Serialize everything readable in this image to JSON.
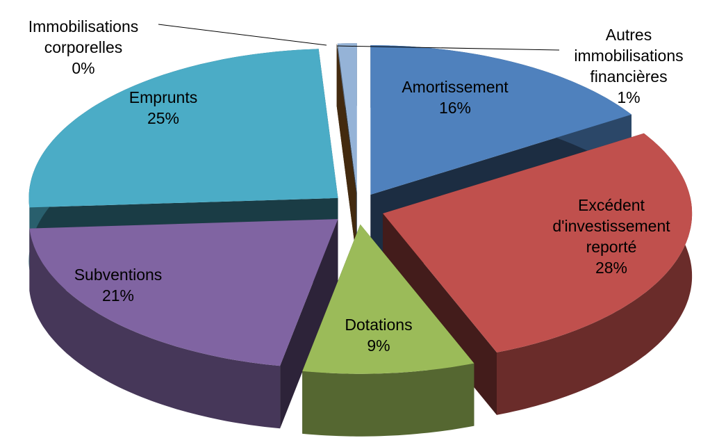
{
  "chart_data": {
    "type": "pie3d",
    "categories": [
      "Amortissement",
      "Excédent d'investissement reporté",
      "Dotations",
      "Subventions",
      "Emprunts",
      "Immobilisations corporelles",
      "Autres immobilisations financières"
    ],
    "values": [
      16,
      28,
      9,
      21,
      25,
      0,
      1
    ],
    "value_labels": [
      "16%",
      "28%",
      "9%",
      "21%",
      "25%",
      "0%",
      "1%"
    ],
    "colors": [
      "#4f81bd",
      "#c0504d",
      "#9bbb59",
      "#8064a2",
      "#4bacc6",
      "#c0782a",
      "#95b3d7"
    ]
  }
}
